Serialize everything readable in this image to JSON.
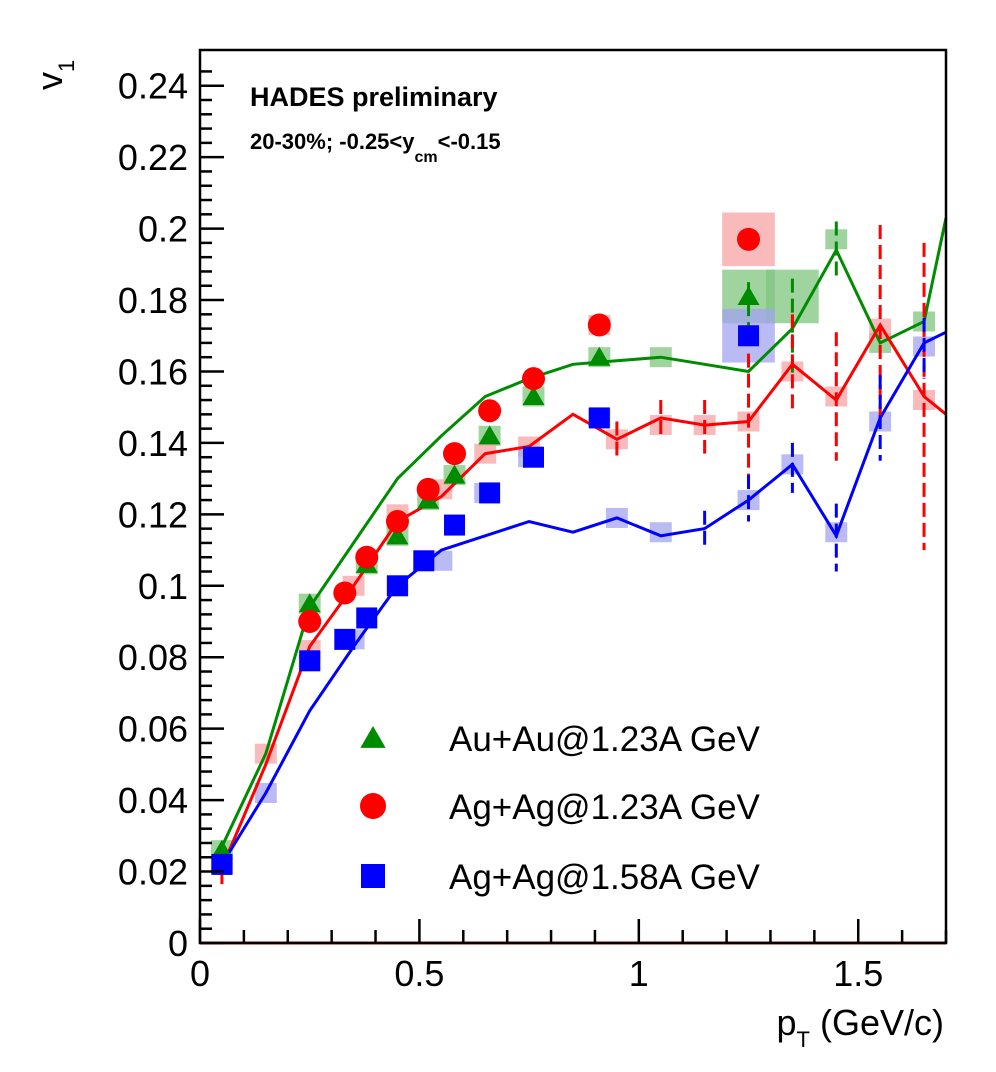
{
  "chart_data": {
    "type": "scatter",
    "header": {
      "title": "HADES preliminary",
      "centrality": "20-30%; -0.25<y",
      "rapidity_sub": "cm",
      "rapidity_tail": "<-0.15"
    },
    "xlabel": {
      "main": "p",
      "sub": "T",
      "unit": " (GeV/c)"
    },
    "ylabel": {
      "main": "v",
      "sub": "1"
    },
    "xlim": [
      0,
      1.7
    ],
    "ylim": [
      0,
      0.25
    ],
    "x_ticks": [
      {
        "value": 0,
        "label": "0"
      },
      {
        "value": 0.5,
        "label": "0.5"
      },
      {
        "value": 1,
        "label": "1"
      },
      {
        "value": 1.5,
        "label": "1.5"
      }
    ],
    "y_ticks": [
      {
        "value": 0,
        "label": "0"
      },
      {
        "value": 0.02,
        "label": "0.02"
      },
      {
        "value": 0.04,
        "label": "0.04"
      },
      {
        "value": 0.06,
        "label": "0.06"
      },
      {
        "value": 0.08,
        "label": "0.08"
      },
      {
        "value": 0.1,
        "label": "0.1"
      },
      {
        "value": 0.12,
        "label": "0.12"
      },
      {
        "value": 0.14,
        "label": "0.14"
      },
      {
        "value": 0.16,
        "label": "0.16"
      },
      {
        "value": 0.18,
        "label": "0.18"
      },
      {
        "value": 0.2,
        "label": "0.2"
      },
      {
        "value": 0.22,
        "label": "0.22"
      },
      {
        "value": 0.24,
        "label": "0.24"
      }
    ],
    "legend_position": "bottom-right",
    "series": [
      {
        "name": "Au+Au@1.23A GeV",
        "marker": "triangle",
        "color": "#008c00",
        "band_color": "#7fc57f",
        "points": [
          {
            "x": 0.05,
            "y": 0.026
          },
          {
            "x": 0.25,
            "y": 0.095
          },
          {
            "x": 0.38,
            "y": 0.106
          },
          {
            "x": 0.45,
            "y": 0.114
          },
          {
            "x": 0.52,
            "y": 0.124
          },
          {
            "x": 0.58,
            "y": 0.131
          },
          {
            "x": 0.66,
            "y": 0.142
          },
          {
            "x": 0.76,
            "y": 0.153
          },
          {
            "x": 0.91,
            "y": 0.164
          },
          {
            "x": 1.25,
            "y": 0.181
          }
        ],
        "sys_boxes": [
          {
            "x": 0.05,
            "y": 0.026
          },
          {
            "x": 0.25,
            "y": 0.095
          },
          {
            "x": 0.38,
            "y": 0.106
          },
          {
            "x": 0.45,
            "y": 0.114
          },
          {
            "x": 0.52,
            "y": 0.124
          },
          {
            "x": 0.58,
            "y": 0.131
          },
          {
            "x": 0.66,
            "y": 0.142
          },
          {
            "x": 0.76,
            "y": 0.153
          },
          {
            "x": 0.91,
            "y": 0.164
          },
          {
            "x": 1.05,
            "y": 0.164
          },
          {
            "x": 1.25,
            "y": 0.181
          },
          {
            "x": 1.35,
            "y": 0.181
          },
          {
            "x": 1.45,
            "y": 0.197
          },
          {
            "x": 1.55,
            "y": 0.168
          },
          {
            "x": 1.65,
            "y": 0.174
          }
        ],
        "curve": [
          [
            0.05,
            0.027
          ],
          [
            0.15,
            0.053
          ],
          [
            0.25,
            0.094
          ],
          [
            0.35,
            0.112
          ],
          [
            0.45,
            0.13
          ],
          [
            0.55,
            0.142
          ],
          [
            0.65,
            0.153
          ],
          [
            0.75,
            0.158
          ],
          [
            0.85,
            0.162
          ],
          [
            0.95,
            0.163
          ],
          [
            1.05,
            0.164
          ],
          [
            1.15,
            0.162
          ],
          [
            1.25,
            0.16
          ],
          [
            1.35,
            0.172
          ],
          [
            1.45,
            0.194
          ],
          [
            1.55,
            0.168
          ],
          [
            1.65,
            0.174
          ],
          [
            1.7,
            0.203
          ]
        ],
        "error_bars": [
          {
            "x": 1.25,
            "lo": 0.172,
            "hi": 0.185
          },
          {
            "x": 1.35,
            "lo": 0.158,
            "hi": 0.186
          },
          {
            "x": 1.45,
            "lo": 0.186,
            "hi": 0.202
          }
        ]
      },
      {
        "name": "Ag+Ag@1.23A GeV",
        "marker": "circle",
        "color": "#ff0000",
        "band_color": "#f5a3a3",
        "points": [
          {
            "x": 0.25,
            "y": 0.09
          },
          {
            "x": 0.33,
            "y": 0.098
          },
          {
            "x": 0.38,
            "y": 0.108
          },
          {
            "x": 0.45,
            "y": 0.118
          },
          {
            "x": 0.52,
            "y": 0.127
          },
          {
            "x": 0.58,
            "y": 0.137
          },
          {
            "x": 0.66,
            "y": 0.149
          },
          {
            "x": 0.76,
            "y": 0.158
          },
          {
            "x": 0.91,
            "y": 0.173
          },
          {
            "x": 1.25,
            "y": 0.197
          }
        ],
        "sys_boxes": [
          {
            "x": 0.05,
            "y": 0.022
          },
          {
            "x": 0.15,
            "y": 0.053
          },
          {
            "x": 0.25,
            "y": 0.082
          },
          {
            "x": 0.35,
            "y": 0.1
          },
          {
            "x": 0.45,
            "y": 0.12
          },
          {
            "x": 0.55,
            "y": 0.127
          },
          {
            "x": 0.65,
            "y": 0.137
          },
          {
            "x": 0.75,
            "y": 0.139
          },
          {
            "x": 0.91,
            "y": 0.173
          },
          {
            "x": 0.95,
            "y": 0.141
          },
          {
            "x": 1.05,
            "y": 0.145
          },
          {
            "x": 1.15,
            "y": 0.145
          },
          {
            "x": 1.25,
            "y": 0.197
          },
          {
            "x": 1.25,
            "y": 0.146
          },
          {
            "x": 1.35,
            "y": 0.16
          },
          {
            "x": 1.45,
            "y": 0.153
          },
          {
            "x": 1.55,
            "y": 0.172
          },
          {
            "x": 1.65,
            "y": 0.152
          }
        ],
        "curve": [
          [
            0.05,
            0.021
          ],
          [
            0.15,
            0.05
          ],
          [
            0.25,
            0.083
          ],
          [
            0.35,
            0.1
          ],
          [
            0.45,
            0.118
          ],
          [
            0.55,
            0.125
          ],
          [
            0.65,
            0.137
          ],
          [
            0.75,
            0.139
          ],
          [
            0.85,
            0.148
          ],
          [
            0.95,
            0.141
          ],
          [
            1.05,
            0.147
          ],
          [
            1.15,
            0.145
          ],
          [
            1.25,
            0.146
          ],
          [
            1.35,
            0.162
          ],
          [
            1.45,
            0.152
          ],
          [
            1.55,
            0.173
          ],
          [
            1.65,
            0.153
          ],
          [
            1.7,
            0.148
          ]
        ],
        "error_bars": [
          {
            "x": 0.05,
            "lo": 0.016,
            "hi": 0.026
          },
          {
            "x": 0.95,
            "lo": 0.136,
            "hi": 0.146
          },
          {
            "x": 1.05,
            "lo": 0.141,
            "hi": 0.152
          },
          {
            "x": 1.15,
            "lo": 0.137,
            "hi": 0.152
          },
          {
            "x": 1.25,
            "lo": 0.128,
            "hi": 0.165
          },
          {
            "x": 1.35,
            "lo": 0.148,
            "hi": 0.176
          },
          {
            "x": 1.45,
            "lo": 0.135,
            "hi": 0.171
          },
          {
            "x": 1.55,
            "lo": 0.147,
            "hi": 0.201
          },
          {
            "x": 1.65,
            "lo": 0.11,
            "hi": 0.196
          }
        ]
      },
      {
        "name": "Ag+Ag@1.58A GeV",
        "marker": "square",
        "color": "#0000ff",
        "band_color": "#a3a3f0",
        "points": [
          {
            "x": 0.05,
            "y": 0.022
          },
          {
            "x": 0.25,
            "y": 0.079
          },
          {
            "x": 0.33,
            "y": 0.085
          },
          {
            "x": 0.38,
            "y": 0.091
          },
          {
            "x": 0.45,
            "y": 0.1
          },
          {
            "x": 0.51,
            "y": 0.107
          },
          {
            "x": 0.58,
            "y": 0.117
          },
          {
            "x": 0.66,
            "y": 0.126
          },
          {
            "x": 0.76,
            "y": 0.136
          },
          {
            "x": 0.91,
            "y": 0.147
          },
          {
            "x": 1.25,
            "y": 0.17
          }
        ],
        "sys_boxes": [
          {
            "x": 0.05,
            "y": 0.022
          },
          {
            "x": 0.15,
            "y": 0.042
          },
          {
            "x": 0.25,
            "y": 0.079
          },
          {
            "x": 0.35,
            "y": 0.085
          },
          {
            "x": 0.45,
            "y": 0.1
          },
          {
            "x": 0.55,
            "y": 0.107
          },
          {
            "x": 0.65,
            "y": 0.126
          },
          {
            "x": 0.75,
            "y": 0.136
          },
          {
            "x": 0.91,
            "y": 0.147
          },
          {
            "x": 0.95,
            "y": 0.119
          },
          {
            "x": 1.05,
            "y": 0.115
          },
          {
            "x": 1.25,
            "y": 0.17
          },
          {
            "x": 1.25,
            "y": 0.124
          },
          {
            "x": 1.35,
            "y": 0.134
          },
          {
            "x": 1.45,
            "y": 0.115
          },
          {
            "x": 1.55,
            "y": 0.146
          },
          {
            "x": 1.65,
            "y": 0.167
          }
        ],
        "curve": [
          [
            0.05,
            0.022
          ],
          [
            0.15,
            0.042
          ],
          [
            0.25,
            0.065
          ],
          [
            0.35,
            0.083
          ],
          [
            0.45,
            0.1
          ],
          [
            0.55,
            0.11
          ],
          [
            0.65,
            0.114
          ],
          [
            0.75,
            0.118
          ],
          [
            0.85,
            0.115
          ],
          [
            0.95,
            0.119
          ],
          [
            1.05,
            0.114
          ],
          [
            1.15,
            0.116
          ],
          [
            1.25,
            0.124
          ],
          [
            1.35,
            0.134
          ],
          [
            1.45,
            0.114
          ],
          [
            1.55,
            0.147
          ],
          [
            1.65,
            0.168
          ],
          [
            1.7,
            0.171
          ]
        ],
        "error_bars": [
          {
            "x": 1.15,
            "lo": 0.111,
            "hi": 0.121
          },
          {
            "x": 1.25,
            "lo": 0.118,
            "hi": 0.131
          },
          {
            "x": 1.35,
            "lo": 0.126,
            "hi": 0.14
          },
          {
            "x": 1.45,
            "lo": 0.104,
            "hi": 0.123
          },
          {
            "x": 1.55,
            "lo": 0.135,
            "hi": 0.159
          },
          {
            "x": 1.65,
            "lo": 0.158,
            "hi": 0.175
          }
        ]
      }
    ]
  }
}
